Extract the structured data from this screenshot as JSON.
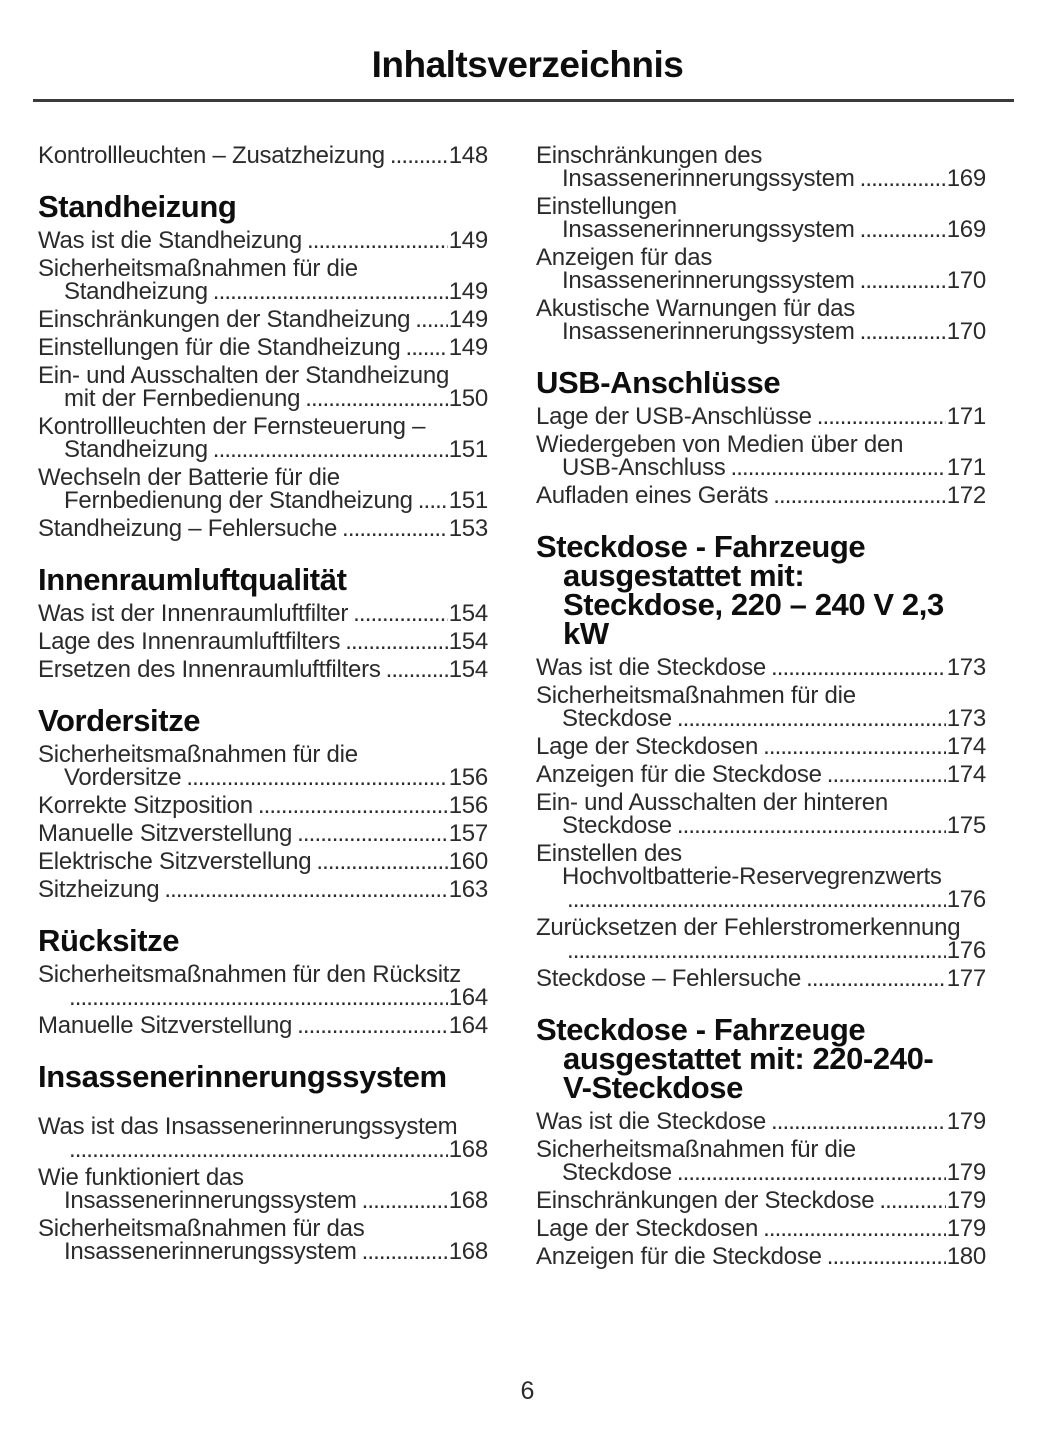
{
  "title": "Inhaltsverzeichnis",
  "page_number": "6",
  "colors": {
    "text": "#2b2b2b",
    "heading": "#0e0e0e",
    "rule": "#3b3b3b",
    "background": "#ffffff"
  },
  "columns": [
    {
      "sections": [
        {
          "heading_lines": [],
          "extra_gap": false,
          "entries": [
            {
              "lines": [
                "Kontrollleuchten – Zusatzheizung"
              ],
              "page": "148"
            }
          ]
        },
        {
          "heading_lines": [
            "Standheizung"
          ],
          "extra_gap": false,
          "entries": [
            {
              "lines": [
                "Was ist die Standheizung"
              ],
              "page": "149"
            },
            {
              "lines": [
                "Sicherheitsmaßnahmen für die",
                "Standheizung"
              ],
              "page": "149"
            },
            {
              "lines": [
                "Einschränkungen der Standheizung"
              ],
              "page": "149"
            },
            {
              "lines": [
                "Einstellungen für die Standheizung"
              ],
              "page": "149"
            },
            {
              "lines": [
                "Ein- und Ausschalten der Standheizung",
                "mit der Fernbedienung"
              ],
              "page": "150"
            },
            {
              "lines": [
                "Kontrollleuchten der Fernsteuerung –",
                "Standheizung"
              ],
              "page": "151"
            },
            {
              "lines": [
                "Wechseln der Batterie für die",
                "Fernbedienung der Standheizung"
              ],
              "page": "151"
            },
            {
              "lines": [
                "Standheizung – Fehlersuche"
              ],
              "page": "153"
            }
          ]
        },
        {
          "heading_lines": [
            "Innenraumluftqualität"
          ],
          "extra_gap": false,
          "entries": [
            {
              "lines": [
                "Was ist der Innenraumluftfilter"
              ],
              "page": "154"
            },
            {
              "lines": [
                "Lage des Innenraumluftfilters"
              ],
              "page": "154"
            },
            {
              "lines": [
                "Ersetzen des Innenraumluftfilters"
              ],
              "page": "154"
            }
          ]
        },
        {
          "heading_lines": [
            "Vordersitze"
          ],
          "extra_gap": false,
          "entries": [
            {
              "lines": [
                "Sicherheitsmaßnahmen für die",
                "Vordersitze"
              ],
              "page": "156"
            },
            {
              "lines": [
                "Korrekte Sitzposition"
              ],
              "page": "156"
            },
            {
              "lines": [
                "Manuelle Sitzverstellung"
              ],
              "page": "157"
            },
            {
              "lines": [
                "Elektrische Sitzverstellung"
              ],
              "page": "160"
            },
            {
              "lines": [
                "Sitzheizung"
              ],
              "page": "163"
            }
          ]
        },
        {
          "heading_lines": [
            "Rücksitze"
          ],
          "extra_gap": false,
          "entries": [
            {
              "lines": [
                "Sicherheitsmaßnahmen für den Rücksitz",
                ""
              ],
              "page": "164"
            },
            {
              "lines": [
                "Manuelle Sitzverstellung"
              ],
              "page": "164"
            }
          ]
        },
        {
          "heading_lines": [
            "Insassenerinnerungssystem"
          ],
          "extra_gap": true,
          "entries": [
            {
              "lines": [
                "Was ist das Insassenerinnerungssystem",
                ""
              ],
              "page": "168"
            },
            {
              "lines": [
                "Wie funktioniert das",
                "Insassenerinnerungssystem"
              ],
              "page": "168"
            },
            {
              "lines": [
                "Sicherheitsmaßnahmen für das",
                "Insassenerinnerungssystem"
              ],
              "page": "168"
            }
          ]
        }
      ]
    },
    {
      "sections": [
        {
          "heading_lines": [],
          "extra_gap": false,
          "entries": [
            {
              "lines": [
                "Einschränkungen des",
                "Insassenerinnerungssystem"
              ],
              "page": "169"
            },
            {
              "lines": [
                "Einstellungen",
                "Insassenerinnerungssystem"
              ],
              "page": "169"
            },
            {
              "lines": [
                "Anzeigen für das",
                "Insassenerinnerungssystem"
              ],
              "page": "170"
            },
            {
              "lines": [
                "Akustische Warnungen für das",
                "Insassenerinnerungssystem"
              ],
              "page": "170"
            }
          ]
        },
        {
          "heading_lines": [
            "USB-Anschlüsse"
          ],
          "extra_gap": false,
          "entries": [
            {
              "lines": [
                "Lage der USB-Anschlüsse"
              ],
              "page": "171"
            },
            {
              "lines": [
                "Wiedergeben von Medien über den",
                "USB-Anschluss"
              ],
              "page": "171"
            },
            {
              "lines": [
                "Aufladen eines Geräts"
              ],
              "page": "172"
            }
          ]
        },
        {
          "heading_lines": [
            "Steckdose - Fahrzeuge",
            "ausgestattet mit:",
            "Steckdose, 220 – 240 V 2,3",
            "kW"
          ],
          "extra_gap": false,
          "entries": [
            {
              "lines": [
                "Was ist die Steckdose"
              ],
              "page": "173"
            },
            {
              "lines": [
                "Sicherheitsmaßnahmen für die",
                "Steckdose"
              ],
              "page": "173"
            },
            {
              "lines": [
                "Lage der Steckdosen"
              ],
              "page": "174"
            },
            {
              "lines": [
                "Anzeigen für die Steckdose"
              ],
              "page": "174"
            },
            {
              "lines": [
                "Ein- und Ausschalten der hinteren",
                "Steckdose"
              ],
              "page": "175"
            },
            {
              "lines": [
                "Einstellen des",
                "Hochvoltbatterie-Reservegrenzwerts",
                ""
              ],
              "page": "176"
            },
            {
              "lines": [
                "Zurücksetzen der Fehlerstromerkennung",
                ""
              ],
              "page": "176"
            },
            {
              "lines": [
                "Steckdose – Fehlersuche"
              ],
              "page": "177"
            }
          ]
        },
        {
          "heading_lines": [
            "Steckdose - Fahrzeuge",
            "ausgestattet mit: 220-240-",
            "V-Steckdose"
          ],
          "extra_gap": false,
          "entries": [
            {
              "lines": [
                "Was ist die Steckdose"
              ],
              "page": "179"
            },
            {
              "lines": [
                "Sicherheitsmaßnahmen für die",
                "Steckdose"
              ],
              "page": "179"
            },
            {
              "lines": [
                "Einschränkungen der Steckdose"
              ],
              "page": "179"
            },
            {
              "lines": [
                "Lage der Steckdosen"
              ],
              "page": "179"
            },
            {
              "lines": [
                "Anzeigen für die Steckdose"
              ],
              "page": "180"
            }
          ]
        }
      ]
    }
  ]
}
